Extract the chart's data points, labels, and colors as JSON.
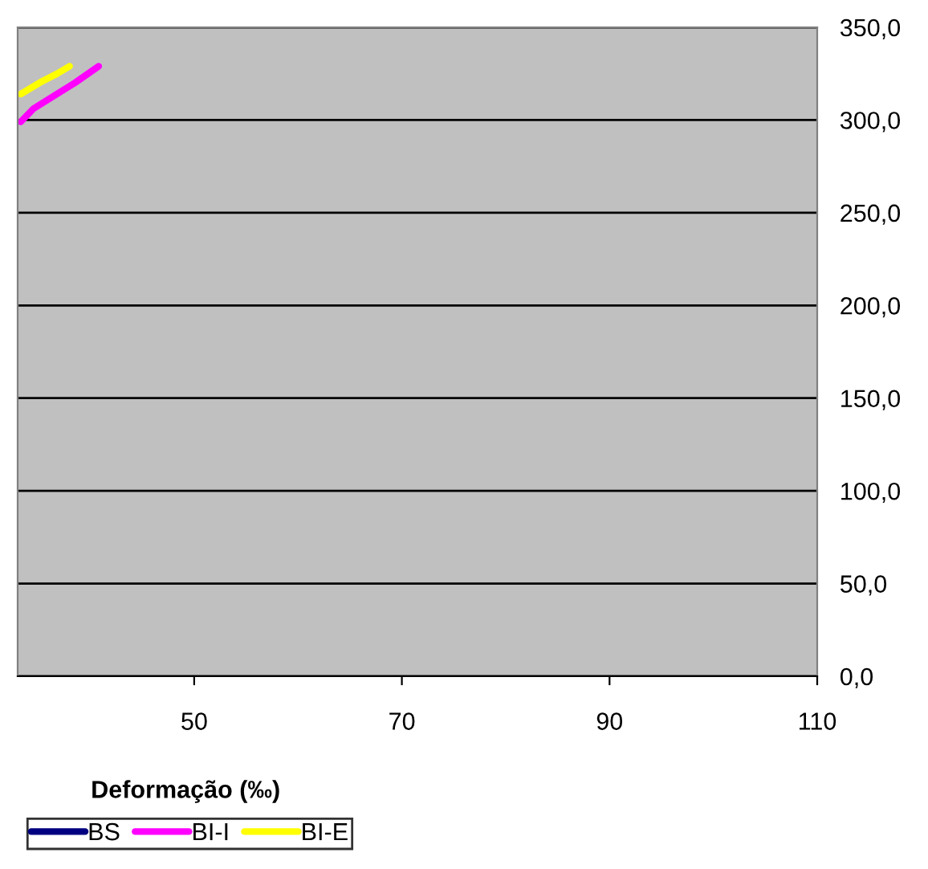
{
  "chart_data": {
    "type": "line",
    "xlabel": "Deformação (‰)",
    "xlim": [
      33,
      110
    ],
    "xticks": [
      50,
      70,
      90,
      110
    ],
    "ylim": [
      0,
      350
    ],
    "yticks": [
      {
        "value": 0,
        "label": "0,0"
      },
      {
        "value": 50,
        "label": "50,0"
      },
      {
        "value": 100,
        "label": "100,0"
      },
      {
        "value": 150,
        "label": "150,0"
      },
      {
        "value": 200,
        "label": "200,0"
      },
      {
        "value": 250,
        "label": "250,0"
      },
      {
        "value": 300,
        "label": "300,0"
      },
      {
        "value": 350,
        "label": "350,0"
      }
    ],
    "grid": "y",
    "legend": "bottom left",
    "marker": "none",
    "line_style": "solid",
    "series": [
      {
        "name": "BS",
        "color": "#000080"
      },
      {
        "name": "BI-I",
        "color": "#ff00ff",
        "x": [
          33.3,
          34.5,
          36.2,
          38.5,
          40.8
        ],
        "values": [
          299,
          306,
          312,
          320,
          329
        ]
      },
      {
        "name": "BI-E",
        "color": "#ffff00",
        "x": [
          33.3,
          35.4,
          36.8,
          38.0
        ],
        "values": [
          314,
          321,
          325,
          329
        ]
      }
    ]
  }
}
